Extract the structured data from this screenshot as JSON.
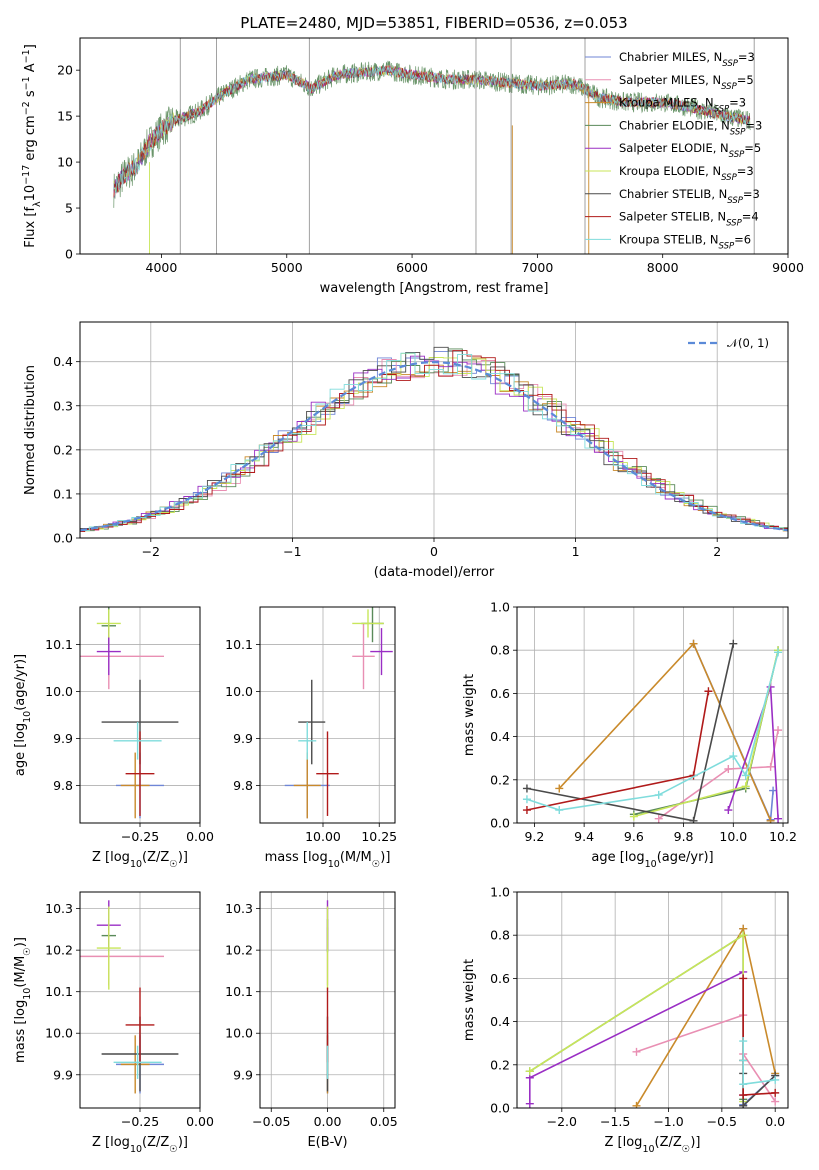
{
  "figure_title": "PLATE=2480, MJD=53851, FIBERID=0536, z=0.053",
  "colors": {
    "Chabrier MILES": "#6f86d6",
    "Salpeter MILES": "#e98fb3",
    "Kroupa MILES": "#c98a2b",
    "Chabrier ELODIE": "#5a8a5a",
    "Salpeter ELODIE": "#9a2ec4",
    "Kroupa ELODIE": "#c8e65a",
    "Chabrier STELIB": "#4a4a4a",
    "Salpeter STELIB": "#b01a1a",
    "Kroupa STELIB": "#7fdcdc",
    "gauss": "#5b8ad8"
  },
  "chart_data": [
    {
      "id": "spectrum",
      "type": "line",
      "xlabel": "wavelength [Angstrom, rest frame]",
      "ylabel": "Flux [f_λ10^{-17} erg cm^{-2} s^{-1} A^{-1}]",
      "xlim": [
        3350,
        9000
      ],
      "ylim": [
        0,
        23.5
      ],
      "xticks": [
        4000,
        5000,
        6000,
        7000,
        8000,
        9000
      ],
      "yticks": [
        0,
        5,
        10,
        15,
        20
      ],
      "legend_position": "right",
      "legend": [
        {
          "imf": "Chabrier",
          "lib": "MILES",
          "n": "3"
        },
        {
          "imf": "Salpeter",
          "lib": "MILES",
          "n": "5"
        },
        {
          "imf": "Kroupa",
          "lib": "MILES",
          "n": "3"
        },
        {
          "imf": "Chabrier",
          "lib": "ELODIE",
          "n": "3"
        },
        {
          "imf": "Salpeter",
          "lib": "ELODIE",
          "n": "5"
        },
        {
          "imf": "Kroupa",
          "lib": "ELODIE",
          "n": "3"
        },
        {
          "imf": "Chabrier",
          "lib": "STELIB",
          "n": "3"
        },
        {
          "imf": "Salpeter",
          "lib": "STELIB",
          "n": "4"
        },
        {
          "imf": "Kroupa",
          "lib": "STELIB",
          "n": "6"
        }
      ],
      "continuum": [
        [
          3620,
          7
        ],
        [
          3700,
          8.5
        ],
        [
          3800,
          9.5
        ],
        [
          3900,
          12
        ],
        [
          4000,
          13.5
        ],
        [
          4100,
          14.5
        ],
        [
          4300,
          15.5
        ],
        [
          4500,
          17.5
        ],
        [
          4700,
          19
        ],
        [
          5000,
          19.5
        ],
        [
          5200,
          18
        ],
        [
          5400,
          19.5
        ],
        [
          5800,
          20
        ],
        [
          6000,
          19.5
        ],
        [
          6300,
          19
        ],
        [
          6500,
          19
        ],
        [
          7000,
          18.3
        ],
        [
          7300,
          18.5
        ],
        [
          7500,
          17
        ],
        [
          7700,
          16.5
        ],
        [
          8000,
          16.5
        ],
        [
          8200,
          16
        ],
        [
          8500,
          15
        ],
        [
          8700,
          14.5
        ]
      ]
    },
    {
      "id": "residuals",
      "type": "step",
      "xlabel": "(data-model)/error",
      "ylabel": "Normed distribution",
      "xlim": [
        -2.5,
        2.5
      ],
      "ylim": [
        0,
        0.49
      ],
      "xticks": [
        -2,
        -1,
        0,
        1,
        2
      ],
      "yticks": [
        0.0,
        0.1,
        0.2,
        0.3,
        0.4
      ],
      "legend_position": "top-right",
      "gauss_label": "𝒩(0, 1)"
    },
    {
      "id": "age_vs_Z",
      "type": "errorbar",
      "xlabel": "Z [log10(Z/Z☉)]",
      "ylabel": "age [log10(age/yr)]",
      "xlim": [
        -0.5,
        0.0
      ],
      "ylim": [
        9.72,
        10.18
      ],
      "xticks": [
        -0.25,
        0.0
      ],
      "yticks": [
        9.8,
        9.9,
        10.0,
        10.1
      ],
      "points": [
        {
          "s": "Chabrier MILES",
          "x": -0.25,
          "y": 9.8,
          "xe": 0.1,
          "ye": 0.07
        },
        {
          "s": "Salpeter MILES",
          "x": -0.38,
          "y": 10.075,
          "xe": 0.23,
          "ye": 0.07
        },
        {
          "s": "Kroupa MILES",
          "x": -0.27,
          "y": 9.8,
          "xe": 0.06,
          "ye": 0.07
        },
        {
          "s": "Chabrier ELODIE",
          "x": -0.38,
          "y": 10.14,
          "xe": 0.03,
          "ye": 0.04
        },
        {
          "s": "Salpeter ELODIE",
          "x": -0.38,
          "y": 10.085,
          "xe": 0.05,
          "ye": 0.05
        },
        {
          "s": "Kroupa ELODIE",
          "x": -0.38,
          "y": 10.145,
          "xe": 0.05,
          "ye": 0.03
        },
        {
          "s": "Chabrier STELIB",
          "x": -0.25,
          "y": 9.935,
          "xe": 0.16,
          "ye": 0.09
        },
        {
          "s": "Salpeter STELIB",
          "x": -0.25,
          "y": 9.825,
          "xe": 0.06,
          "ye": 0.09
        },
        {
          "s": "Kroupa STELIB",
          "x": -0.26,
          "y": 9.895,
          "xe": 0.1,
          "ye": 0.04
        }
      ]
    },
    {
      "id": "age_vs_mass",
      "type": "errorbar",
      "xlabel": "mass [log10(M/M☉)]",
      "ylabel": "",
      "xlim": [
        9.72,
        10.32
      ],
      "ylim": [
        9.72,
        10.18
      ],
      "xticks": [
        10.0,
        10.25
      ],
      "yticks": [
        9.8,
        9.9,
        10.0,
        10.1
      ],
      "points": [
        {
          "s": "Chabrier MILES",
          "x": 9.93,
          "y": 9.8,
          "xe": 0.1,
          "ye": 0.07
        },
        {
          "s": "Salpeter MILES",
          "x": 10.18,
          "y": 10.075,
          "xe": 0.05,
          "ye": 0.07
        },
        {
          "s": "Kroupa MILES",
          "x": 9.93,
          "y": 9.8,
          "xe": 0.06,
          "ye": 0.07
        },
        {
          "s": "Chabrier ELODIE",
          "x": 10.22,
          "y": 10.145,
          "xe": 0.05,
          "ye": 0.04
        },
        {
          "s": "Salpeter ELODIE",
          "x": 10.26,
          "y": 10.085,
          "xe": 0.05,
          "ye": 0.05
        },
        {
          "s": "Kroupa ELODIE",
          "x": 10.2,
          "y": 10.145,
          "xe": 0.07,
          "ye": 0.03
        },
        {
          "s": "Chabrier STELIB",
          "x": 9.95,
          "y": 9.935,
          "xe": 0.06,
          "ye": 0.09
        },
        {
          "s": "Salpeter STELIB",
          "x": 10.02,
          "y": 9.825,
          "xe": 0.05,
          "ye": 0.09
        },
        {
          "s": "Kroupa STELIB",
          "x": 9.93,
          "y": 9.895,
          "xe": 0.04,
          "ye": 0.04
        }
      ]
    },
    {
      "id": "mass_vs_Z",
      "type": "errorbar",
      "xlabel": "Z [log10(Z/Z☉)]",
      "ylabel": "mass [log10(M/M☉)]",
      "xlim": [
        -0.5,
        0.0
      ],
      "ylim": [
        9.82,
        10.34
      ],
      "xticks": [
        -0.25,
        0.0
      ],
      "yticks": [
        9.9,
        10.0,
        10.1,
        10.2,
        10.3
      ],
      "points": [
        {
          "s": "Chabrier MILES",
          "x": -0.25,
          "y": 9.925,
          "xe": 0.1,
          "ye": 0.07
        },
        {
          "s": "Salpeter MILES",
          "x": -0.38,
          "y": 10.185,
          "xe": 0.23,
          "ye": 0.07
        },
        {
          "s": "Kroupa MILES",
          "x": -0.27,
          "y": 9.925,
          "xe": 0.06,
          "ye": 0.07
        },
        {
          "s": "Chabrier ELODIE",
          "x": -0.38,
          "y": 10.235,
          "xe": 0.03,
          "ye": 0.04
        },
        {
          "s": "Salpeter ELODIE",
          "x": -0.38,
          "y": 10.26,
          "xe": 0.05,
          "ye": 0.06
        },
        {
          "s": "Kroupa ELODIE",
          "x": -0.38,
          "y": 10.205,
          "xe": 0.05,
          "ye": 0.1
        },
        {
          "s": "Chabrier STELIB",
          "x": -0.25,
          "y": 9.95,
          "xe": 0.16,
          "ye": 0.09
        },
        {
          "s": "Salpeter STELIB",
          "x": -0.25,
          "y": 10.02,
          "xe": 0.06,
          "ye": 0.09
        },
        {
          "s": "Kroupa STELIB",
          "x": -0.26,
          "y": 9.93,
          "xe": 0.1,
          "ye": 0.04
        }
      ]
    },
    {
      "id": "mass_vs_ebv",
      "type": "errorbar",
      "xlabel": "E(B-V)",
      "ylabel": "",
      "xlim": [
        -0.06,
        0.06
      ],
      "ylim": [
        9.82,
        10.34
      ],
      "xticks": [
        -0.05,
        0.0,
        0.05
      ],
      "yticks": [
        9.9,
        10.0,
        10.1,
        10.2,
        10.3
      ],
      "points": [
        {
          "s": "Chabrier MILES",
          "x": 0,
          "y": 9.925,
          "xe": 0,
          "ye": 0.07
        },
        {
          "s": "Salpeter MILES",
          "x": 0,
          "y": 10.185,
          "xe": 0,
          "ye": 0.07
        },
        {
          "s": "Kroupa MILES",
          "x": 0,
          "y": 9.925,
          "xe": 0,
          "ye": 0.07
        },
        {
          "s": "Chabrier ELODIE",
          "x": 0,
          "y": 10.235,
          "xe": 0,
          "ye": 0.04
        },
        {
          "s": "Salpeter ELODIE",
          "x": 0,
          "y": 10.26,
          "xe": 0,
          "ye": 0.06
        },
        {
          "s": "Kroupa ELODIE",
          "x": 0,
          "y": 10.205,
          "xe": 0,
          "ye": 0.1
        },
        {
          "s": "Chabrier STELIB",
          "x": 0,
          "y": 9.95,
          "xe": 0,
          "ye": 0.09
        },
        {
          "s": "Salpeter STELIB",
          "x": 0,
          "y": 10.02,
          "xe": 0,
          "ye": 0.09
        },
        {
          "s": "Kroupa STELIB",
          "x": 0,
          "y": 9.93,
          "xe": 0,
          "ye": 0.04
        }
      ]
    },
    {
      "id": "weight_vs_age",
      "type": "line",
      "xlabel": "age [log10(age/yr)]",
      "ylabel": "mass weight",
      "xlim": [
        9.13,
        10.22
      ],
      "ylim": [
        0,
        1.0
      ],
      "xticks": [
        9.2,
        9.4,
        9.6,
        9.8,
        10.0,
        10.2
      ],
      "yticks": [
        0.0,
        0.2,
        0.4,
        0.6,
        0.8,
        1.0
      ],
      "series": [
        {
          "s": "Chabrier MILES",
          "pts": [
            [
              9.84,
              0.83
            ],
            [
              10.15,
              0.015
            ],
            [
              10.16,
              0.15
            ]
          ]
        },
        {
          "s": "Salpeter MILES",
          "pts": [
            [
              9.7,
              0.02
            ],
            [
              9.98,
              0.25
            ],
            [
              10.15,
              0.26
            ],
            [
              10.18,
              0.43
            ]
          ]
        },
        {
          "s": "Kroupa MILES",
          "pts": [
            [
              9.3,
              0.16
            ],
            [
              9.84,
              0.83
            ],
            [
              10.15,
              0.01
            ]
          ]
        },
        {
          "s": "Chabrier ELODIE",
          "pts": [
            [
              9.6,
              0.04
            ],
            [
              10.05,
              0.16
            ],
            [
              10.18,
              0.8
            ]
          ]
        },
        {
          "s": "Salpeter ELODIE",
          "pts": [
            [
              9.98,
              0.06
            ],
            [
              10.15,
              0.63
            ],
            [
              10.18,
              0.02
            ]
          ]
        },
        {
          "s": "Kroupa ELODIE",
          "pts": [
            [
              9.6,
              0.03
            ],
            [
              10.05,
              0.17
            ],
            [
              10.18,
              0.8
            ]
          ]
        },
        {
          "s": "Chabrier STELIB",
          "pts": [
            [
              9.17,
              0.16
            ],
            [
              9.84,
              0.01
            ],
            [
              10.0,
              0.83
            ]
          ]
        },
        {
          "s": "Salpeter STELIB",
          "pts": [
            [
              9.17,
              0.06
            ],
            [
              9.84,
              0.22
            ],
            [
              9.9,
              0.61
            ]
          ]
        },
        {
          "s": "Kroupa STELIB",
          "pts": [
            [
              9.17,
              0.11
            ],
            [
              9.3,
              0.06
            ],
            [
              9.7,
              0.13
            ],
            [
              10.0,
              0.31
            ],
            [
              10.05,
              0.22
            ],
            [
              10.18,
              0.79
            ]
          ]
        }
      ]
    },
    {
      "id": "weight_vs_Z",
      "type": "line",
      "xlabel": "Z [log10(Z/Z☉)]",
      "ylabel": "mass weight",
      "xlim": [
        -2.42,
        0.12
      ],
      "ylim": [
        0,
        1.0
      ],
      "xticks": [
        -2.0,
        -1.5,
        -1.0,
        -0.5,
        0.0
      ],
      "yticks": [
        0.0,
        0.2,
        0.4,
        0.6,
        0.8,
        1.0
      ],
      "series": [
        {
          "s": "Chabrier MILES",
          "pts": [
            [
              -0.3,
              0.83
            ],
            [
              -0.3,
              0.015
            ],
            [
              0.0,
              0.15
            ]
          ]
        },
        {
          "s": "Salpeter MILES",
          "pts": [
            [
              -1.3,
              0.26
            ],
            [
              -0.3,
              0.43
            ],
            [
              -0.3,
              0.25
            ],
            [
              0.0,
              0.03
            ]
          ]
        },
        {
          "s": "Kroupa MILES",
          "pts": [
            [
              -1.3,
              0.01
            ],
            [
              -0.3,
              0.83
            ],
            [
              0.0,
              0.16
            ]
          ]
        },
        {
          "s": "Chabrier ELODIE",
          "pts": [
            [
              -2.3,
              0.17
            ],
            [
              -0.3,
              0.8
            ],
            [
              -0.3,
              0.04
            ]
          ]
        },
        {
          "s": "Salpeter ELODIE",
          "pts": [
            [
              -2.3,
              0.02
            ],
            [
              -2.3,
              0.14
            ],
            [
              -0.3,
              0.63
            ],
            [
              -0.3,
              0.06
            ]
          ]
        },
        {
          "s": "Kroupa ELODIE",
          "pts": [
            [
              -2.3,
              0.17
            ],
            [
              -0.3,
              0.8
            ],
            [
              -0.3,
              0.03
            ]
          ]
        },
        {
          "s": "Chabrier STELIB",
          "pts": [
            [
              -0.3,
              0.16
            ],
            [
              -0.3,
              0.01
            ],
            [
              0.0,
              0.15
            ]
          ]
        },
        {
          "s": "Salpeter STELIB",
          "pts": [
            [
              -0.3,
              0.6
            ],
            [
              -0.3,
              0.22
            ],
            [
              -0.3,
              0.06
            ],
            [
              0.0,
              0.07
            ]
          ]
        },
        {
          "s": "Kroupa STELIB",
          "pts": [
            [
              -0.3,
              0.31
            ],
            [
              -0.3,
              0.22
            ],
            [
              -0.3,
              0.11
            ],
            [
              0.0,
              0.13
            ]
          ]
        }
      ]
    }
  ]
}
